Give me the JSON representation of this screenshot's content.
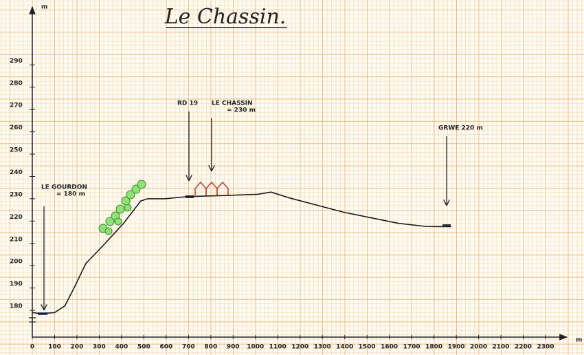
{
  "chart_data": {
    "type": "line",
    "title": "Le Chassin.",
    "x_label": "m",
    "y_label": "m",
    "x": [
      0,
      40,
      100,
      146,
      187,
      240,
      317,
      409,
      486,
      517,
      594,
      700,
      870,
      1010,
      1070,
      1148,
      1394,
      1640,
      1763,
      1877
    ],
    "y": [
      179,
      178.5,
      179,
      182,
      190,
      201,
      209,
      219,
      229,
      230,
      230,
      231,
      231.5,
      232,
      233,
      230.5,
      224,
      219,
      217.6,
      217.5
    ],
    "color": "#1a1a1a",
    "xlim": [
      0,
      2380
    ],
    "ylim": [
      168,
      316
    ],
    "xticks": [
      0,
      100,
      200,
      300,
      400,
      500,
      600,
      700,
      800,
      900,
      1000,
      1100,
      1200,
      1300,
      1400,
      1500,
      1600,
      1700,
      1800,
      1900,
      2000,
      2100,
      2200,
      2300
    ],
    "yticks": [
      180,
      190,
      200,
      210,
      220,
      230,
      240,
      250,
      260,
      270,
      280,
      290
    ],
    "grid": true,
    "annotations": [
      {
        "lines": [
          "LE GOURDON",
          "≈ 180 m"
        ]
      },
      {
        "lines": [
          "RD 19"
        ]
      },
      {
        "lines": [
          "LE CHASSIN",
          "≈ 230 m"
        ]
      },
      {
        "lines": [
          "GRWE 220 m"
        ]
      }
    ]
  }
}
